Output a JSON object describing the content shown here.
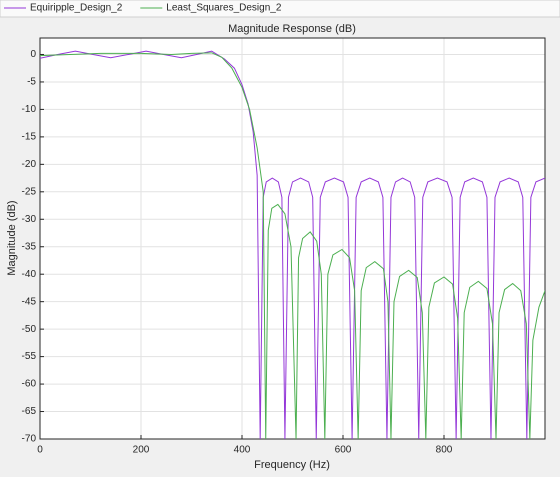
{
  "chart_data": {
    "type": "line",
    "title": "Magnitude Response (dB)",
    "xlabel": "Frequency (Hz)",
    "ylabel": "Magnitude (dB)",
    "xlim": [
      0,
      1000
    ],
    "ylim": [
      -70,
      3
    ],
    "xticks": [
      0,
      200,
      400,
      600,
      800
    ],
    "yticks": [
      0,
      -5,
      -10,
      -15,
      -20,
      -25,
      -30,
      -35,
      -40,
      -45,
      -50,
      -55,
      -60,
      -65,
      -70
    ],
    "grid": true,
    "series": [
      {
        "name": "Equiripple_Design_2",
        "color": "#9437d8",
        "x": [
          0,
          35,
          70,
          105,
          140,
          175,
          210,
          245,
          280,
          310,
          340,
          365,
          385,
          400,
          412,
          422,
          430,
          436,
          442,
          448,
          460,
          472,
          479,
          485,
          492,
          500,
          516,
          532,
          540,
          547,
          555,
          565,
          583,
          601,
          610,
          618,
          626,
          636,
          653,
          670,
          679,
          687,
          695,
          704,
          718,
          733,
          742,
          750,
          758,
          768,
          787,
          806,
          816,
          824,
          832,
          841,
          858,
          876,
          885,
          893,
          901,
          911,
          929,
          947,
          956,
          964,
          972,
          982,
          1000
        ],
        "values": [
          -0.7,
          0,
          0.6,
          0,
          -0.6,
          0,
          0.6,
          0,
          -0.6,
          0,
          0.6,
          -0.8,
          -2.5,
          -5.5,
          -9,
          -14,
          -22,
          -70,
          -26,
          -23.2,
          -22.5,
          -23.2,
          -26,
          -70,
          -26,
          -23.2,
          -22.5,
          -23.2,
          -26,
          -70,
          -26,
          -23.2,
          -22.5,
          -23.2,
          -26,
          -70,
          -26,
          -23.2,
          -22.5,
          -23.2,
          -26,
          -70,
          -26,
          -23.2,
          -22.5,
          -23.2,
          -26,
          -70,
          -26,
          -23.2,
          -22.5,
          -23.2,
          -26,
          -70,
          -26,
          -23.2,
          -22.5,
          -23.2,
          -26,
          -70,
          -26,
          -23.2,
          -22.5,
          -23.2,
          -26,
          -70,
          -26,
          -23.2,
          -22.5
        ]
      },
      {
        "name": "Least_Squares_Design_2",
        "color": "#4caf50",
        "x": [
          0,
          60,
          120,
          200,
          260,
          300,
          340,
          360,
          380,
          400,
          415,
          430,
          442,
          447,
          452,
          459,
          471,
          485,
          497,
          507,
          512,
          520,
          535,
          548,
          557,
          564,
          570,
          580,
          598,
          613,
          623,
          630,
          636,
          646,
          663,
          680,
          689,
          695,
          701,
          712,
          730,
          747,
          757,
          764,
          770,
          781,
          800,
          817,
          827,
          834,
          840,
          851,
          868,
          885,
          896,
          903,
          909,
          920,
          936,
          952,
          963,
          970,
          976,
          988,
          1000
        ],
        "values": [
          -0.2,
          0,
          0.2,
          0.2,
          0,
          0.2,
          0.3,
          -0.5,
          -2.5,
          -6,
          -10,
          -17,
          -25,
          -70,
          -32,
          -28,
          -27.3,
          -29,
          -35,
          -70,
          -37,
          -33.5,
          -32.3,
          -34,
          -40,
          -70,
          -40,
          -36.5,
          -35.5,
          -37,
          -43,
          -70,
          -43,
          -38.8,
          -37.7,
          -39,
          -45,
          -70,
          -45,
          -40.4,
          -39.3,
          -40.6,
          -47,
          -70,
          -46,
          -41.6,
          -40.5,
          -41.8,
          -48,
          -70,
          -47,
          -42.4,
          -41.3,
          -42.6,
          -49,
          -70,
          -47,
          -42.8,
          -41.7,
          -43,
          -49,
          -70,
          -52,
          -46,
          -43
        ]
      }
    ]
  }
}
